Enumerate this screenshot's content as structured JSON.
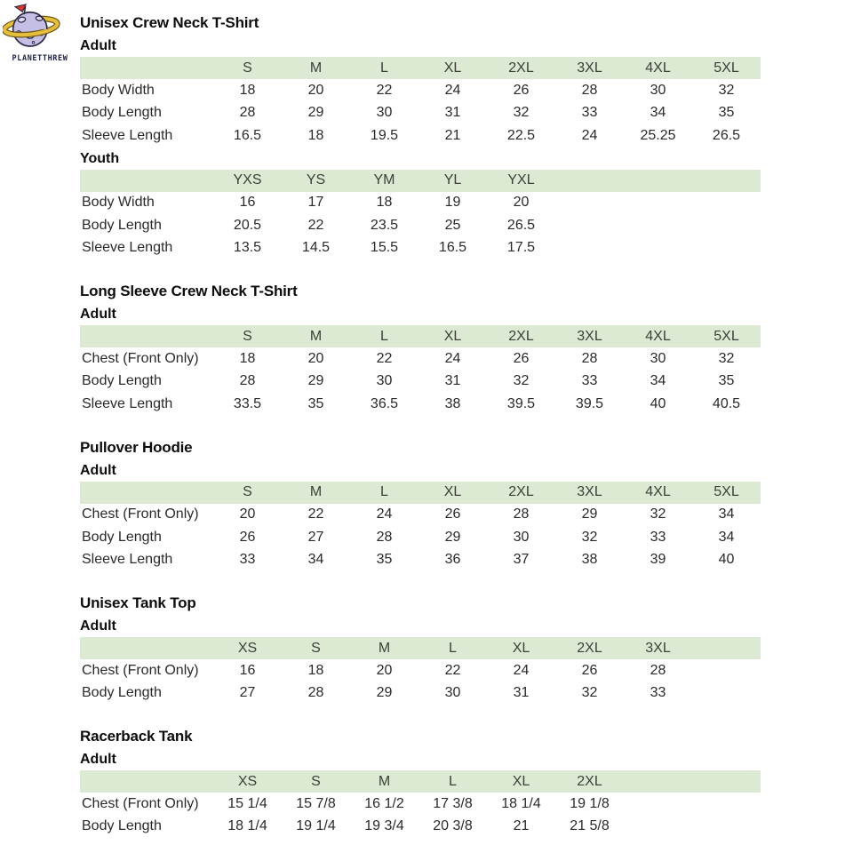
{
  "brand": {
    "name": "PLANETTHREW"
  },
  "colors": {
    "header_band": "#dcead4",
    "planet_body": "#c5bfe6",
    "planet_ring": "#e5be3d",
    "ring_outline": "#6b5417",
    "flag_red": "#d93a2b",
    "brand_text": "#1e2142"
  },
  "sections": [
    {
      "title": "Unisex Crew Neck T-Shirt",
      "tables": [
        {
          "group": "Adult",
          "columns": [
            "S",
            "M",
            "L",
            "XL",
            "2XL",
            "3XL",
            "4XL",
            "5XL"
          ],
          "rows": [
            {
              "label": "Body Width",
              "values": [
                "18",
                "20",
                "22",
                "24",
                "26",
                "28",
                "30",
                "32"
              ]
            },
            {
              "label": "Body Length",
              "values": [
                "28",
                "29",
                "30",
                "31",
                "32",
                "33",
                "34",
                "35"
              ]
            },
            {
              "label": "Sleeve Length",
              "values": [
                "16.5",
                "18",
                "19.5",
                "21",
                "22.5",
                "24",
                "25.25",
                "26.5"
              ]
            }
          ]
        },
        {
          "group": "Youth",
          "columns": [
            "YXS",
            "YS",
            "YM",
            "YL",
            "YXL"
          ],
          "rows": [
            {
              "label": "Body Width",
              "values": [
                "16",
                "17",
                "18",
                "19",
                "20"
              ]
            },
            {
              "label": "Body Length",
              "values": [
                "20.5",
                "22",
                "23.5",
                "25",
                "26.5"
              ]
            },
            {
              "label": "Sleeve Length",
              "values": [
                "13.5",
                "14.5",
                "15.5",
                "16.5",
                "17.5"
              ]
            }
          ]
        }
      ]
    },
    {
      "title": "Long Sleeve Crew Neck T-Shirt",
      "tables": [
        {
          "group": "Adult",
          "columns": [
            "S",
            "M",
            "L",
            "XL",
            "2XL",
            "3XL",
            "4XL",
            "5XL"
          ],
          "rows": [
            {
              "label": "Chest (Front Only)",
              "values": [
                "18",
                "20",
                "22",
                "24",
                "26",
                "28",
                "30",
                "32"
              ]
            },
            {
              "label": "Body Length",
              "values": [
                "28",
                "29",
                "30",
                "31",
                "32",
                "33",
                "34",
                "35"
              ]
            },
            {
              "label": "Sleeve Length",
              "values": [
                "33.5",
                "35",
                "36.5",
                "38",
                "39.5",
                "39.5",
                "40",
                "40.5"
              ]
            }
          ]
        }
      ]
    },
    {
      "title": "Pullover Hoodie",
      "tables": [
        {
          "group": "Adult",
          "columns": [
            "S",
            "M",
            "L",
            "XL",
            "2XL",
            "3XL",
            "4XL",
            "5XL"
          ],
          "rows": [
            {
              "label": "Chest (Front Only)",
              "values": [
                "20",
                "22",
                "24",
                "26",
                "28",
                "29",
                "32",
                "34"
              ]
            },
            {
              "label": "Body Length",
              "values": [
                "26",
                "27",
                "28",
                "29",
                "30",
                "32",
                "33",
                "34"
              ]
            },
            {
              "label": "Sleeve Length",
              "values": [
                "33",
                "34",
                "35",
                "36",
                "37",
                "38",
                "39",
                "40"
              ]
            }
          ]
        }
      ]
    },
    {
      "title": "Unisex Tank Top",
      "tables": [
        {
          "group": "Adult",
          "columns": [
            "XS",
            "S",
            "M",
            "L",
            "XL",
            "2XL",
            "3XL"
          ],
          "rows": [
            {
              "label": "Chest (Front Only)",
              "values": [
                "16",
                "18",
                "20",
                "22",
                "24",
                "26",
                "28"
              ]
            },
            {
              "label": "Body Length",
              "values": [
                "27",
                "28",
                "29",
                "30",
                "31",
                "32",
                "33"
              ]
            }
          ]
        }
      ]
    },
    {
      "title": "Racerback Tank",
      "tables": [
        {
          "group": "Adult",
          "columns": [
            "XS",
            "S",
            "M",
            "L",
            "XL",
            "2XL"
          ],
          "rows": [
            {
              "label": "Chest (Front Only)",
              "values": [
                "15 1/4",
                "15 7/8",
                "16 1/2",
                "17 3/8",
                "18 1/4",
                "19 1/8"
              ]
            },
            {
              "label": "Body Length",
              "values": [
                "18 1/4",
                "19 1/4",
                "19 3/4",
                "20 3/8",
                "21",
                "21 5/8"
              ]
            }
          ]
        }
      ]
    }
  ]
}
